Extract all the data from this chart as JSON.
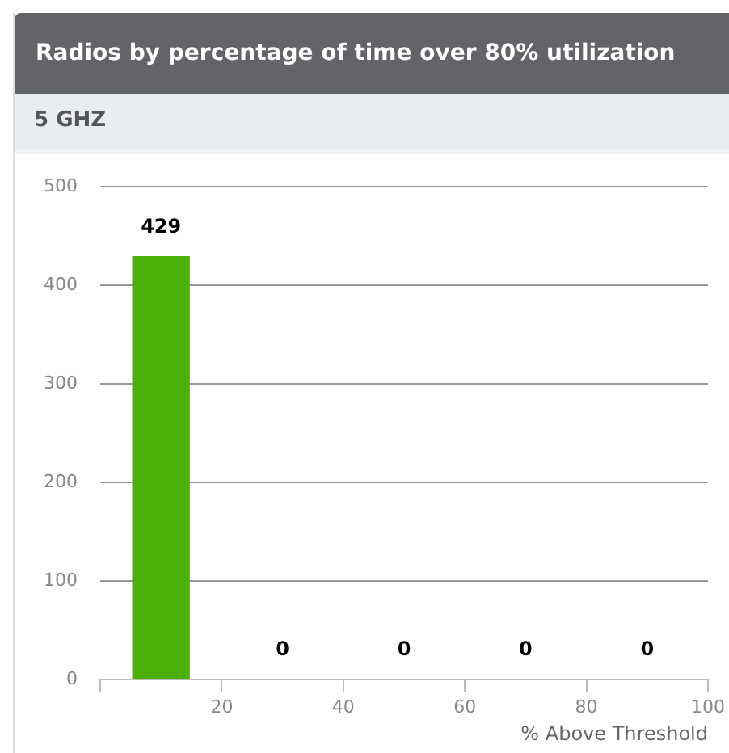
{
  "chart_data": {
    "type": "bar",
    "title": "Radios by percentage of time over 80% utilization",
    "subtitle": "5 GHZ",
    "xlabel": "% Above Threshold",
    "x": [
      10,
      30,
      50,
      70,
      90
    ],
    "values": [
      429,
      0,
      0,
      0,
      0
    ],
    "color": "#4caf0a",
    "xlim": [
      0,
      100
    ],
    "xticks": [
      {
        "value": 0,
        "label": null
      },
      20,
      40,
      60,
      80,
      100
    ],
    "ylim": [
      0,
      500
    ],
    "yticks": [
      0,
      100,
      200,
      300,
      400,
      500
    ],
    "grid": "y",
    "legend": false,
    "data_labels": true
  }
}
